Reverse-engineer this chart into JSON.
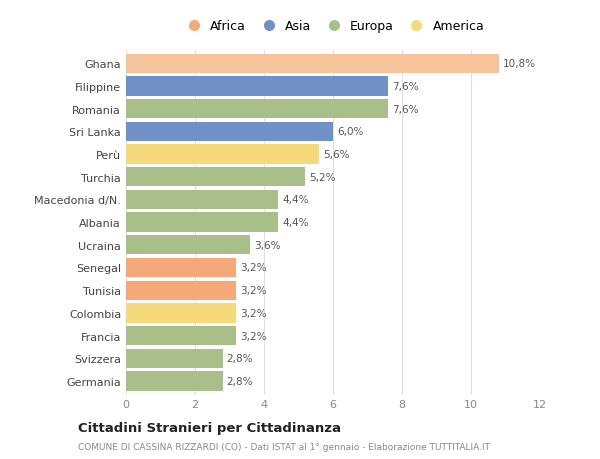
{
  "categories": [
    "Germania",
    "Svizzera",
    "Francia",
    "Colombia",
    "Tunisia",
    "Senegal",
    "Ucraina",
    "Albania",
    "Macedonia d/N.",
    "Turchia",
    "Perù",
    "Sri Lanka",
    "Romania",
    "Filippine",
    "Ghana"
  ],
  "values": [
    2.8,
    2.8,
    3.2,
    3.2,
    3.2,
    3.2,
    3.6,
    4.4,
    4.4,
    5.2,
    5.6,
    6.0,
    7.6,
    7.6,
    10.8
  ],
  "labels": [
    "2,8%",
    "2,8%",
    "3,2%",
    "3,2%",
    "3,2%",
    "3,2%",
    "3,6%",
    "4,4%",
    "4,4%",
    "5,2%",
    "5,6%",
    "6,0%",
    "7,6%",
    "7,6%",
    "10,8%"
  ],
  "colors": [
    "#a8bf8a",
    "#a8bf8a",
    "#a8bf8a",
    "#f5d97a",
    "#f5a878",
    "#f5a878",
    "#a8bf8a",
    "#a8bf8a",
    "#a8bf8a",
    "#a8bf8a",
    "#f5d97a",
    "#7090c8",
    "#a8bf8a",
    "#7090c8",
    "#f5c49a"
  ],
  "legend": [
    {
      "label": "Africa",
      "color": "#f5a878"
    },
    {
      "label": "Asia",
      "color": "#7090c8"
    },
    {
      "label": "Europa",
      "color": "#a8bf8a"
    },
    {
      "label": "America",
      "color": "#f5d97a"
    }
  ],
  "xlim": [
    0,
    12
  ],
  "xticks": [
    0,
    2,
    4,
    6,
    8,
    10,
    12
  ],
  "title": "Cittadini Stranieri per Cittadinanza",
  "subtitle": "COMUNE DI CASSINA RIZZARDI (CO) - Dati ISTAT al 1° gennaio - Elaborazione TUTTITALIA.IT",
  "background_color": "#ffffff",
  "grid_color": "#e0e0e0"
}
